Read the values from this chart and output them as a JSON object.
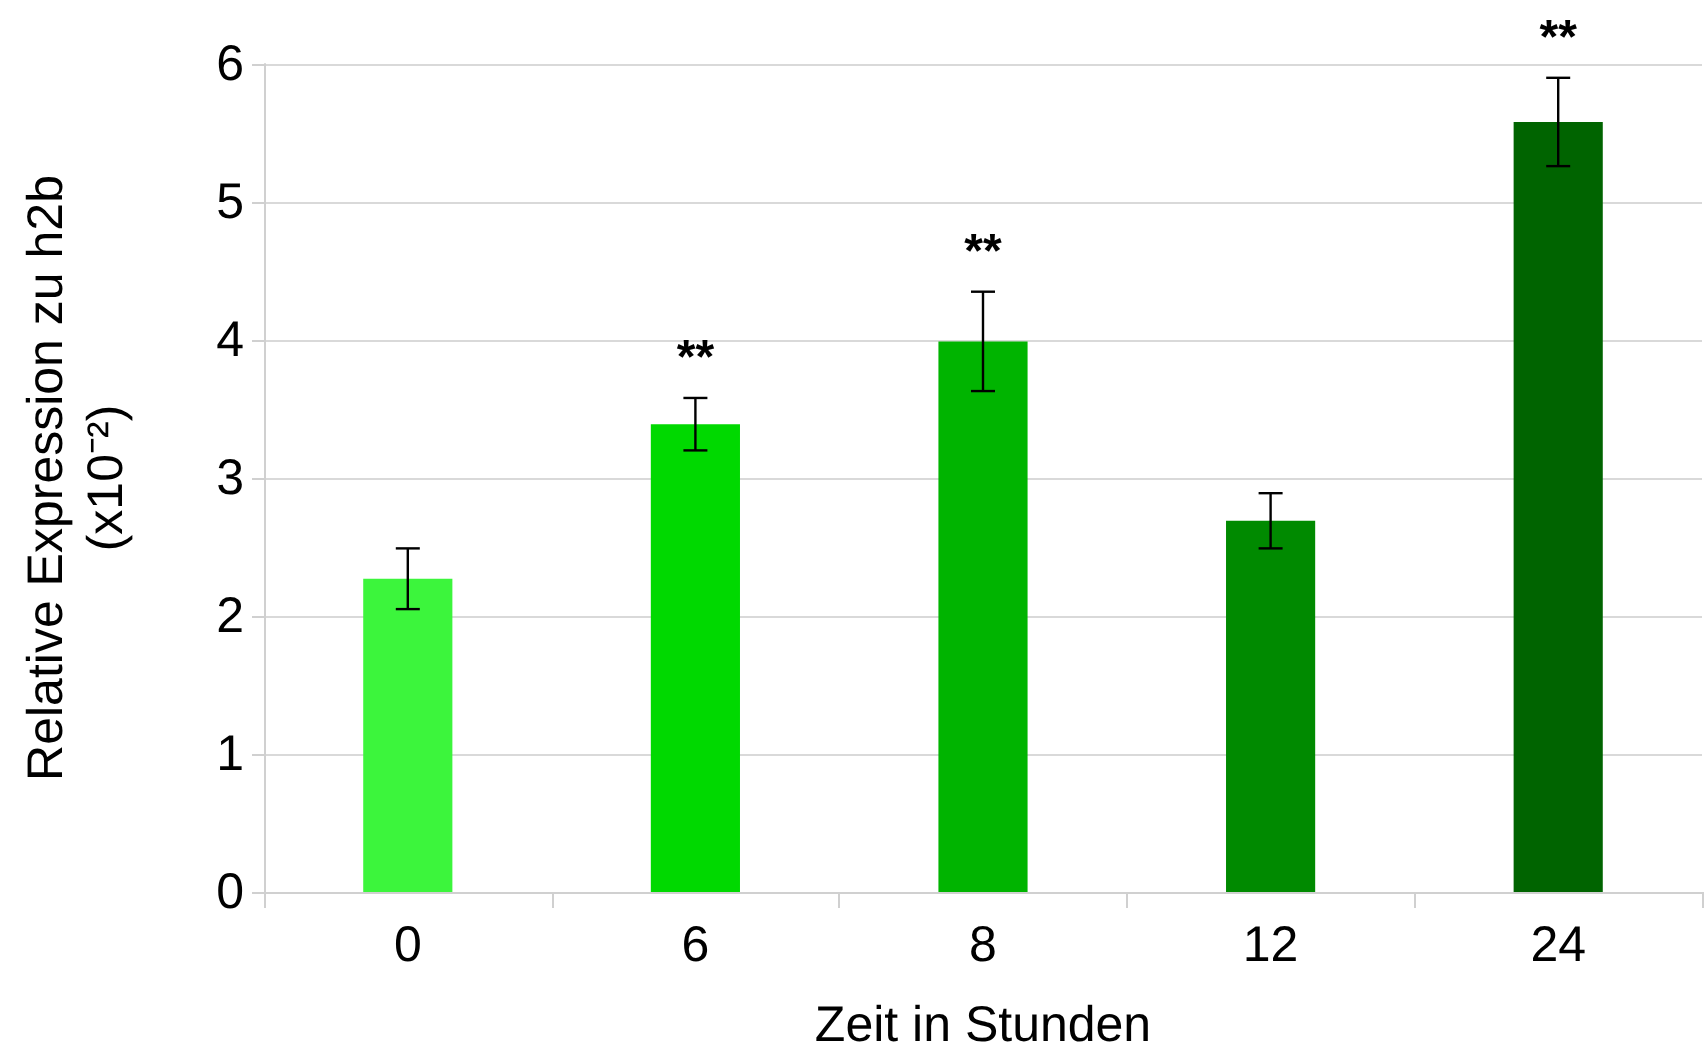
{
  "chart_data": {
    "type": "bar",
    "xlabel": "Zeit in Stunden",
    "ylabel": "Relative Expression zu h2b\n(x10⁻²)",
    "categories": [
      "0",
      "6",
      "8",
      "12",
      "24"
    ],
    "values": [
      2.27,
      3.39,
      3.99,
      2.69,
      5.58
    ],
    "colors": [
      "#3cf53c",
      "#00d900",
      "#00b400",
      "#008a00",
      "#006400"
    ],
    "errors": [
      0.22,
      0.19,
      0.36,
      0.2,
      0.32
    ],
    "ylim": [
      0,
      6
    ],
    "yticks": [
      0,
      1,
      2,
      3,
      4,
      5,
      6
    ],
    "grid": "y",
    "annotations": [
      {
        "text": "**",
        "x": "6",
        "y": 3.58
      },
      {
        "text": "**",
        "x": "8",
        "y": 4.35
      },
      {
        "text": "**",
        "x": "24",
        "y": 5.9
      }
    ]
  }
}
